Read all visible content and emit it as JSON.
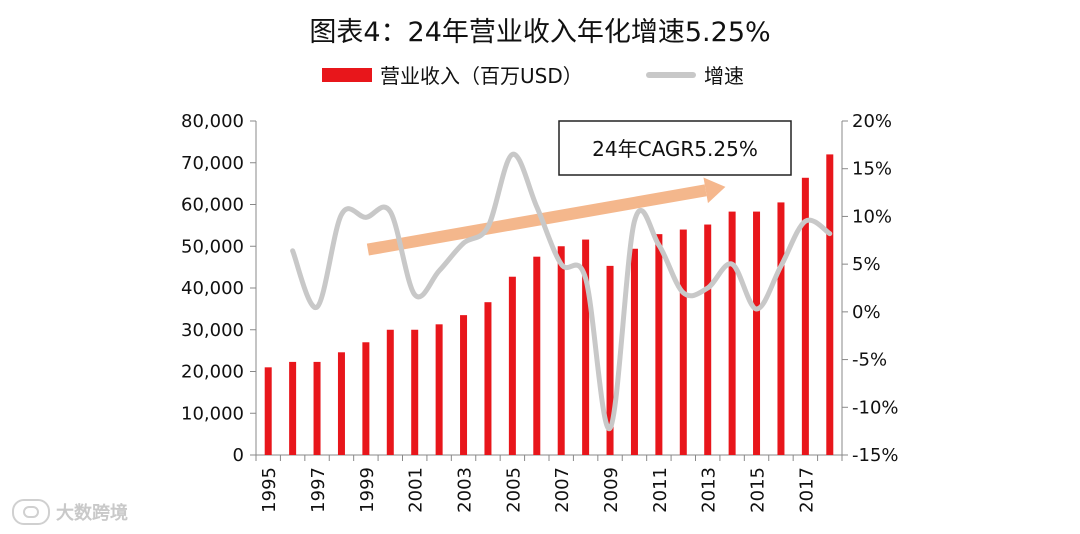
{
  "title": "图表4：24年营业收入年化增速5.25%",
  "legend": {
    "bar_label": "营业收入（百万USD）",
    "line_label": "增速"
  },
  "annotation": {
    "text": "24年CAGR5.25%"
  },
  "watermark": {
    "text": "大数跨境"
  },
  "colors": {
    "bar": "#e8161b",
    "line": "#c8c8c8",
    "arrow": "#f4b183"
  },
  "chart_data": {
    "type": "bar",
    "categories": [
      "1995",
      "1996",
      "1997",
      "1998",
      "1999",
      "2000",
      "2001",
      "2002",
      "2003",
      "2004",
      "2005",
      "2006",
      "2007",
      "2008",
      "2009",
      "2010",
      "2011",
      "2012",
      "2013",
      "2014",
      "2015",
      "2016",
      "2017",
      "2018"
    ],
    "x_tick_labels": [
      "1995",
      "1997",
      "1999",
      "2001",
      "2003",
      "2005",
      "2007",
      "2009",
      "2011",
      "2013",
      "2015",
      "2017"
    ],
    "series": [
      {
        "name": "营业收入（百万USD）",
        "type": "bar",
        "axis": "left",
        "values": [
          21000,
          22300,
          22300,
          24600,
          27000,
          30000,
          30000,
          31300,
          33500,
          36600,
          42700,
          47500,
          50000,
          51600,
          45300,
          49400,
          52900,
          54000,
          55200,
          58300,
          58300,
          60500,
          66400,
          72000
        ]
      },
      {
        "name": "增速",
        "type": "line",
        "axis": "right",
        "values": [
          null,
          6.4,
          0.5,
          10.2,
          9.9,
          10.5,
          1.8,
          4.3,
          7.2,
          8.9,
          16.5,
          11.0,
          5.0,
          3.5,
          -12.2,
          9.5,
          7.0,
          2.0,
          2.5,
          5.0,
          0.3,
          4.8,
          9.5,
          8.2
        ]
      }
    ],
    "y_left": {
      "min": 0,
      "max": 80000,
      "step": 10000,
      "tick_labels": [
        "0",
        "10,000",
        "20,000",
        "30,000",
        "40,000",
        "50,000",
        "60,000",
        "70,000",
        "80,000"
      ]
    },
    "y_right": {
      "min": -15,
      "max": 20,
      "step": 5,
      "tick_labels": [
        "-15%",
        "-10%",
        "-5%",
        "0%",
        "5%",
        "10%",
        "15%",
        "20%"
      ]
    },
    "trend_arrow": {
      "from_category": "1999",
      "to_category": "2013",
      "from_value_left": 49200,
      "to_value_left": 63400
    },
    "grid": false,
    "legend_position": "top"
  }
}
